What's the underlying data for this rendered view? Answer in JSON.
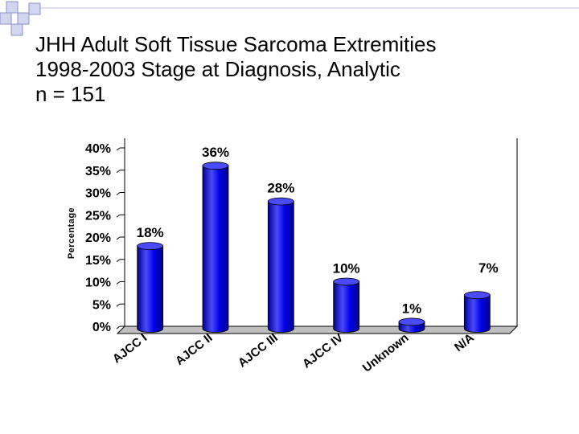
{
  "title_lines": [
    "JHH Adult Soft Tissue Sarcoma Extremities",
    "1998-2003 Stage at Diagnosis, Analytic",
    "n = 151"
  ],
  "colors": {
    "bar_fill": "#0000e8",
    "bar_dark": "#00008c",
    "bar_light": "#4a4aff",
    "square_fill": "#d0d6ef",
    "square_border": "#8a93c8"
  },
  "chart_data": {
    "type": "bar",
    "title": "",
    "xlabel": "",
    "ylabel": "Percentage",
    "categories": [
      "AJCC I",
      "AJCC II",
      "AJCC III",
      "AJCC IV",
      "Unknown",
      "N/A"
    ],
    "values": [
      18,
      36,
      28,
      10,
      1,
      7
    ],
    "data_labels": [
      "18%",
      "36%",
      "28%",
      "10%",
      "1%",
      "7%"
    ],
    "ylim": [
      0,
      40
    ],
    "yticks": [
      0,
      5,
      10,
      15,
      20,
      25,
      30,
      35,
      40
    ],
    "ytick_labels": [
      "0%",
      "5%",
      "10%",
      "15%",
      "20%",
      "25%",
      "30%",
      "35%",
      "40%"
    ],
    "grid": false,
    "legend": "none",
    "style": "3d cylinder"
  }
}
